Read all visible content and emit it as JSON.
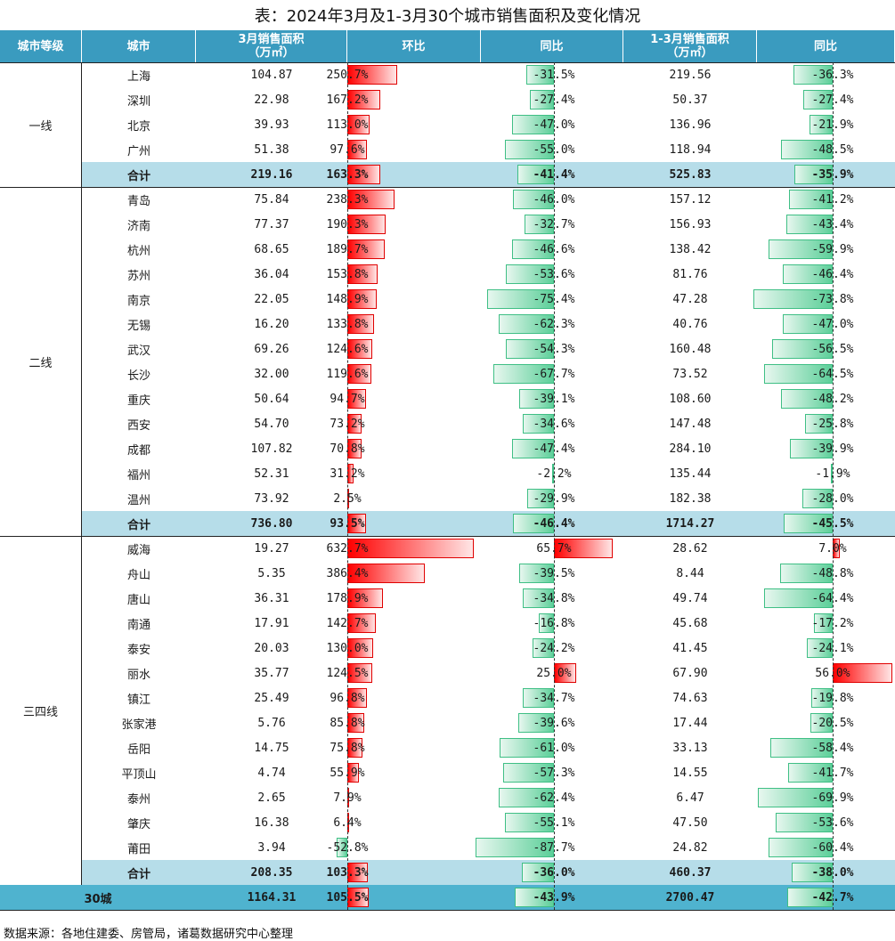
{
  "title": "表：2024年3月及1-3月30个城市销售面积及变化情况",
  "source": "数据来源：各地住建委、房管局，诸葛数据研究中心整理",
  "headers": {
    "tier": "城市等级",
    "city": "城市",
    "mar_area_line1": "3月销售面积",
    "mar_area_line2": "（万㎡）",
    "mom": "环比",
    "yoy": "同比",
    "q1_area_line1": "1-3月销售面积",
    "q1_area_line2": "（万㎡）",
    "q1_yoy": "同比"
  },
  "tiers": [
    {
      "label": "一线",
      "rows": [
        {
          "city": "上海",
          "mar": "104.87",
          "mom": "250.7%",
          "yoy": "-31.5%",
          "q1": "219.56",
          "q1_yoy": "-36.3%"
        },
        {
          "city": "深圳",
          "mar": "22.98",
          "mom": "167.2%",
          "yoy": "-27.4%",
          "q1": "50.37",
          "q1_yoy": "-27.4%"
        },
        {
          "city": "北京",
          "mar": "39.93",
          "mom": "113.0%",
          "yoy": "-47.0%",
          "q1": "136.96",
          "q1_yoy": "-21.9%"
        },
        {
          "city": "广州",
          "mar": "51.38",
          "mom": "97.6%",
          "yoy": "-55.0%",
          "q1": "118.94",
          "q1_yoy": "-48.5%"
        }
      ],
      "total": {
        "city": "合计",
        "mar": "219.16",
        "mom": "163.3%",
        "yoy": "-41.4%",
        "q1": "525.83",
        "q1_yoy": "-35.9%"
      }
    },
    {
      "label": "二线",
      "rows": [
        {
          "city": "青岛",
          "mar": "75.84",
          "mom": "238.3%",
          "yoy": "-46.0%",
          "q1": "157.12",
          "q1_yoy": "-41.2%"
        },
        {
          "city": "济南",
          "mar": "77.37",
          "mom": "190.3%",
          "yoy": "-32.7%",
          "q1": "156.93",
          "q1_yoy": "-43.4%"
        },
        {
          "city": "杭州",
          "mar": "68.65",
          "mom": "189.7%",
          "yoy": "-46.6%",
          "q1": "138.42",
          "q1_yoy": "-59.9%"
        },
        {
          "city": "苏州",
          "mar": "36.04",
          "mom": "153.8%",
          "yoy": "-53.6%",
          "q1": "81.76",
          "q1_yoy": "-46.4%"
        },
        {
          "city": "南京",
          "mar": "22.05",
          "mom": "148.9%",
          "yoy": "-75.4%",
          "q1": "47.28",
          "q1_yoy": "-73.8%"
        },
        {
          "city": "无锡",
          "mar": "16.20",
          "mom": "133.8%",
          "yoy": "-62.3%",
          "q1": "40.76",
          "q1_yoy": "-47.0%"
        },
        {
          "city": "武汉",
          "mar": "69.26",
          "mom": "124.6%",
          "yoy": "-54.3%",
          "q1": "160.48",
          "q1_yoy": "-56.5%"
        },
        {
          "city": "长沙",
          "mar": "32.00",
          "mom": "119.6%",
          "yoy": "-67.7%",
          "q1": "73.52",
          "q1_yoy": "-64.5%"
        },
        {
          "city": "重庆",
          "mar": "50.64",
          "mom": "94.7%",
          "yoy": "-39.1%",
          "q1": "108.60",
          "q1_yoy": "-48.2%"
        },
        {
          "city": "西安",
          "mar": "54.70",
          "mom": "73.2%",
          "yoy": "-34.6%",
          "q1": "147.48",
          "q1_yoy": "-25.8%"
        },
        {
          "city": "成都",
          "mar": "107.82",
          "mom": "70.8%",
          "yoy": "-47.4%",
          "q1": "284.10",
          "q1_yoy": "-39.9%"
        },
        {
          "city": "福州",
          "mar": "52.31",
          "mom": "31.2%",
          "yoy": "-2.2%",
          "q1": "135.44",
          "q1_yoy": "-1.9%"
        },
        {
          "city": "温州",
          "mar": "73.92",
          "mom": "2.5%",
          "yoy": "-29.9%",
          "q1": "182.38",
          "q1_yoy": "-28.0%"
        }
      ],
      "total": {
        "city": "合计",
        "mar": "736.80",
        "mom": "93.5%",
        "yoy": "-46.4%",
        "q1": "1714.27",
        "q1_yoy": "-45.5%"
      }
    },
    {
      "label": "三四线",
      "rows": [
        {
          "city": "威海",
          "mar": "19.27",
          "mom": "632.7%",
          "yoy": "65.7%",
          "q1": "28.62",
          "q1_yoy": "7.0%"
        },
        {
          "city": "舟山",
          "mar": "5.35",
          "mom": "386.4%",
          "yoy": "-39.5%",
          "q1": "8.44",
          "q1_yoy": "-48.8%"
        },
        {
          "city": "唐山",
          "mar": "36.31",
          "mom": "178.9%",
          "yoy": "-34.8%",
          "q1": "49.74",
          "q1_yoy": "-64.4%"
        },
        {
          "city": "南通",
          "mar": "17.91",
          "mom": "142.7%",
          "yoy": "-16.8%",
          "q1": "45.68",
          "q1_yoy": "-17.2%"
        },
        {
          "city": "泰安",
          "mar": "20.03",
          "mom": "130.0%",
          "yoy": "-24.2%",
          "q1": "41.45",
          "q1_yoy": "-24.1%"
        },
        {
          "city": "丽水",
          "mar": "35.77",
          "mom": "124.5%",
          "yoy": "25.0%",
          "q1": "67.90",
          "q1_yoy": "56.0%"
        },
        {
          "city": "镇江",
          "mar": "25.49",
          "mom": "96.8%",
          "yoy": "-34.7%",
          "q1": "74.63",
          "q1_yoy": "-19.8%"
        },
        {
          "city": "张家港",
          "mar": "5.76",
          "mom": "85.8%",
          "yoy": "-39.6%",
          "q1": "17.44",
          "q1_yoy": "-20.5%"
        },
        {
          "city": "岳阳",
          "mar": "14.75",
          "mom": "75.8%",
          "yoy": "-61.0%",
          "q1": "33.13",
          "q1_yoy": "-58.4%"
        },
        {
          "city": "平顶山",
          "mar": "4.74",
          "mom": "55.9%",
          "yoy": "-57.3%",
          "q1": "14.55",
          "q1_yoy": "-41.7%"
        },
        {
          "city": "泰州",
          "mar": "2.65",
          "mom": "7.9%",
          "yoy": "-62.4%",
          "q1": "6.47",
          "q1_yoy": "-69.9%"
        },
        {
          "city": "肇庆",
          "mar": "16.38",
          "mom": "6.4%",
          "yoy": "-55.1%",
          "q1": "47.50",
          "q1_yoy": "-53.6%"
        },
        {
          "city": "莆田",
          "mar": "3.94",
          "mom": "-52.8%",
          "yoy": "-87.7%",
          "q1": "24.82",
          "q1_yoy": "-60.4%"
        }
      ],
      "total": {
        "city": "合计",
        "mar": "208.35",
        "mom": "103.3%",
        "yoy": "-36.0%",
        "q1": "460.37",
        "q1_yoy": "-38.0%"
      }
    }
  ],
  "grand_total": {
    "label": "30城",
    "mar": "1164.31",
    "mom": "105.5%",
    "yoy": "-43.9%",
    "q1": "2700.47",
    "q1_yoy": "-42.7%"
  },
  "colors": {
    "header": "#3a9bbf",
    "subtotal": "#b6dde9",
    "grand_total": "#4fb3cf",
    "positive_bar": "#ff0000",
    "negative_bar": "#5ccf99"
  }
}
